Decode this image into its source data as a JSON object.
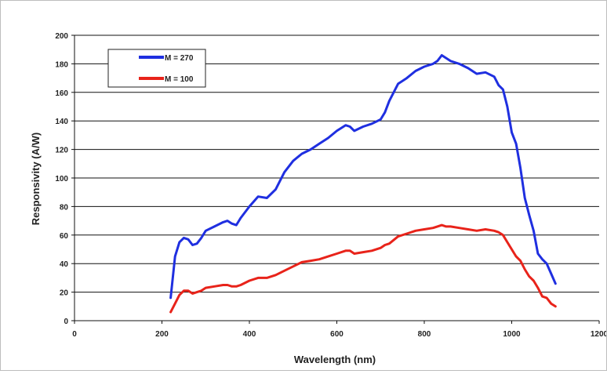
{
  "chart_data": {
    "type": "line",
    "title": "",
    "xlabel": "Wavelength (nm)",
    "ylabel": "Responsivity (A/W)",
    "xlim": [
      0,
      1200
    ],
    "ylim": [
      0,
      200
    ],
    "xticks": [
      0,
      200,
      400,
      600,
      800,
      1000,
      1200
    ],
    "yticks": [
      0,
      20,
      40,
      60,
      80,
      100,
      120,
      140,
      160,
      180,
      200
    ],
    "grid": "horizontal",
    "legend_position": "top-left",
    "series": [
      {
        "name": "M = 270",
        "color": "#1f2fe0",
        "x": [
          220,
          230,
          240,
          250,
          260,
          270,
          280,
          290,
          300,
          320,
          340,
          350,
          360,
          370,
          380,
          400,
          420,
          440,
          460,
          480,
          500,
          520,
          540,
          560,
          580,
          600,
          620,
          630,
          640,
          660,
          680,
          700,
          710,
          720,
          740,
          760,
          780,
          800,
          820,
          830,
          840,
          850,
          860,
          880,
          900,
          920,
          940,
          960,
          970,
          980,
          990,
          1000,
          1010,
          1020,
          1030,
          1040,
          1050,
          1060,
          1070,
          1080,
          1090,
          1100
        ],
        "y": [
          16,
          45,
          55,
          58,
          57,
          53,
          54,
          58,
          63,
          66,
          69,
          70,
          68,
          67,
          72,
          80,
          87,
          86,
          92,
          104,
          112,
          117,
          120,
          124,
          128,
          133,
          137,
          136,
          133,
          136,
          138,
          141,
          146,
          154,
          166,
          170,
          175,
          178,
          180,
          182,
          186,
          184,
          182,
          180,
          177,
          173,
          174,
          171,
          165,
          162,
          150,
          132,
          124,
          107,
          86,
          74,
          63,
          47,
          43,
          40,
          33,
          26
        ]
      },
      {
        "name": "M = 100",
        "color": "#e8231a",
        "x": [
          220,
          230,
          240,
          250,
          260,
          270,
          280,
          290,
          300,
          320,
          340,
          350,
          360,
          370,
          380,
          400,
          420,
          440,
          460,
          480,
          500,
          520,
          540,
          560,
          580,
          600,
          620,
          630,
          640,
          660,
          680,
          700,
          710,
          720,
          740,
          760,
          780,
          800,
          820,
          830,
          840,
          850,
          860,
          880,
          900,
          920,
          940,
          960,
          970,
          980,
          990,
          1000,
          1010,
          1020,
          1030,
          1040,
          1050,
          1060,
          1070,
          1080,
          1090,
          1100
        ],
        "y": [
          6,
          12,
          18,
          21,
          21,
          19,
          20,
          21,
          23,
          24,
          25,
          25,
          24,
          24,
          25,
          28,
          30,
          30,
          32,
          35,
          38,
          41,
          42,
          43,
          45,
          47,
          49,
          49,
          47,
          48,
          49,
          51,
          53,
          54,
          59,
          61,
          63,
          64,
          65,
          66,
          67,
          66,
          66,
          65,
          64,
          63,
          64,
          63,
          62,
          60,
          55,
          50,
          45,
          42,
          36,
          31,
          28,
          23,
          17,
          16,
          12,
          10
        ]
      }
    ]
  }
}
